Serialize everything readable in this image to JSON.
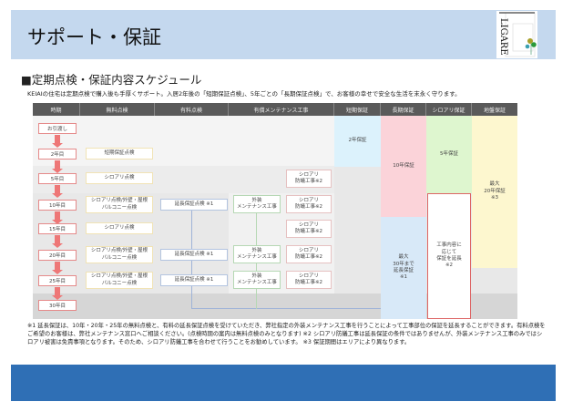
{
  "header": {
    "title": "サポート・保証",
    "logo_text": "LIGARE"
  },
  "section": {
    "title": "■定期点検・保証内容スケジュール",
    "intro": "KEIAIの住宅は定期点検で購入後も手厚くサポート。入居2年後の「短期保証点検」、5年ごとの「長期保証点検」で、お客様の幸せで安全な生活を末永く守ります。"
  },
  "table": {
    "headers": [
      "時期",
      "無料点検",
      "有料点検",
      "有償メンテナンス工事",
      "短期保証",
      "長期保証",
      "シロアリ保証",
      "地盤保証"
    ],
    "rows": [
      {
        "year": "お引渡し"
      },
      {
        "year": "2年目",
        "free": "短期保証点検"
      },
      {
        "year": "5年目",
        "free": "シロアリ点検",
        "shiro": "シロアリ\n防蟻工事※2"
      },
      {
        "year": "10年目",
        "free": "シロアリ点検/外壁・屋根\nバルコニー点検",
        "paid": "延長保証点検 ※1",
        "ext": "外装\nメンテナンス工事",
        "shiro": "シロアリ\n防蟻工事※2"
      },
      {
        "year": "15年目",
        "free": "シロアリ点検",
        "shiro": "シロアリ\n防蟻工事※2"
      },
      {
        "year": "20年目",
        "free": "シロアリ点検/外壁・屋根\nバルコニー点検",
        "paid": "延長保証点検 ※1",
        "ext": "外装\nメンテナンス工事",
        "shiro": "シロアリ\n防蟻工事※2"
      },
      {
        "year": "25年目",
        "free": "シロアリ点検/外壁・屋根\nバルコニー点検",
        "paid": "延長保証点検 ※1",
        "ext": "外装\nメンテナンス工事",
        "shiro": "シロアリ\n防蟻工事※2"
      },
      {
        "year": "30年目"
      }
    ],
    "warranty": {
      "short": "2年保証",
      "long": "10年保証",
      "long_ext": "最大\n30年まで\n延長保証\n※1",
      "termite": "5年保証",
      "termite_ext": "工事内容に\n応じて\n保証を延長\n※2",
      "ground": "最大\n20年保証\n※3"
    },
    "colors": {
      "short": "#dcf2fc",
      "long": "#fbd3d9",
      "long_ext": "#d8e9f8",
      "termite": "#def6cf",
      "ground": "#fdf7cf",
      "header": "#5a5a5a",
      "year_border": "#e58a8a",
      "arrow": "#e77777"
    }
  },
  "footnote": "※1 延長保証は、10年・20年・25年の無料点検と、有料の延長保証点検を受けていただき、弊社指定の外装メンテナンス工事を行うことによって工事部位の保証を延長することができます。有料点検をご希望のお客様は、弊社メンテナンス窓口へご相談ください。(点検時期の案内は無料点検のみとなります) ※2 シロアリ防蟻工事は延長保証の条件ではありませんが、外装メンテナンス工事のみではシロアリ被害は免責事項となります。そのため、シロアリ防蟻工事を合わせて行うことをお勧めしています。 ※3 保証期間はエリアにより異なります。"
}
